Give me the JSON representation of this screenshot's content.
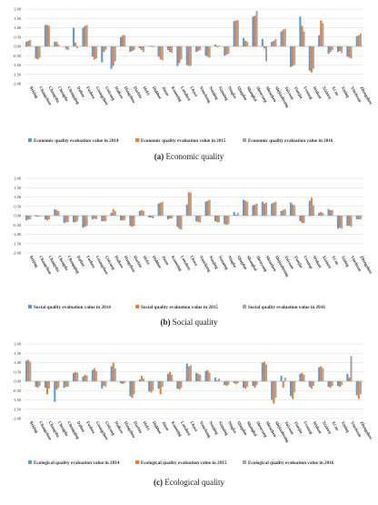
{
  "colors": {
    "y2014": "#5b9bd5",
    "y2015": "#ed7d31",
    "y2016": "#a5a5a5",
    "grid": "#d9d9d9",
    "axis": "#bfbfbf"
  },
  "chart_data": [
    {
      "type": "bar",
      "caption_letter": "(a)",
      "caption_text": "Economic quality",
      "ylim": [
        -2.0,
        2.0
      ],
      "yticks": [
        "2.00",
        "1.50",
        "1.00",
        "0.50",
        "0.00",
        "-0.50",
        "-1.00",
        "-1.50",
        "-2.00"
      ],
      "categories": [
        "Beijing",
        "Changchun",
        "Changsha",
        "Chengdu",
        "Chongqing",
        "Dalian",
        "Fuzhou",
        "Guangzhou",
        "Guiyang",
        "Haikou",
        "Hangzhou",
        "Harbin",
        "Hefei",
        "Huhhot",
        "Jinan",
        "Kunming",
        "Lanzhou",
        "Lhasa",
        "Nanchang",
        "Nanjing",
        "Nanning",
        "Ningbo",
        "Qingdao",
        "Shanghai",
        "Shenyang",
        "Shenzhen",
        "Shijiazhuang",
        "Taiyuan",
        "Tianjin",
        "Urumqi",
        "Wuhan",
        "Xiamen",
        "Xi'an",
        "Xining",
        "Yinchuan",
        "Zhengzhou"
      ],
      "series": [
        {
          "name": "Economic quality evaluation value in 2014",
          "values": [
            0.25,
            -0.65,
            1.15,
            0.25,
            0.0,
            1.0,
            1.0,
            -0.55,
            -0.85,
            -1.2,
            0.5,
            -0.3,
            -0.1,
            0.0,
            -0.55,
            -0.2,
            -1.05,
            -1.0,
            -0.3,
            -0.5,
            0.1,
            -0.5,
            1.35,
            0.45,
            1.6,
            0.4,
            0.25,
            0.8,
            -1.1,
            1.6,
            -1.3,
            0.6,
            -0.4,
            -0.3,
            -0.55,
            0.55
          ]
        },
        {
          "name": "Economic quality evaluation value in 2015",
          "values": [
            0.3,
            -0.7,
            1.15,
            0.25,
            -0.15,
            0.2,
            1.1,
            -0.7,
            -0.3,
            -1.05,
            0.6,
            -0.25,
            -0.2,
            0.05,
            -0.7,
            -0.3,
            -0.9,
            -1.05,
            -0.25,
            -0.55,
            -0.05,
            -0.45,
            1.4,
            0.3,
            1.65,
            -0.1,
            0.3,
            0.9,
            -1.05,
            1.1,
            -1.4,
            1.4,
            -0.3,
            -0.25,
            -0.6,
            0.6
          ]
        },
        {
          "name": "Economic quality evaluation value in 2016",
          "values": [
            0.35,
            -0.6,
            1.1,
            0.1,
            -0.2,
            -0.1,
            1.15,
            -0.65,
            -0.2,
            -0.8,
            0.6,
            -0.2,
            -0.3,
            -0.05,
            -0.75,
            -0.35,
            -0.7,
            -1.05,
            -0.2,
            -0.6,
            0.05,
            -0.4,
            1.4,
            0.25,
            1.9,
            -0.8,
            0.4,
            0.95,
            -1.0,
            0.8,
            -1.2,
            1.25,
            -0.2,
            -0.35,
            -0.65,
            0.7
          ]
        }
      ]
    },
    {
      "type": "bar",
      "caption_letter": "(b)",
      "caption_text": "Social quality",
      "ylim": [
        -2.0,
        2.0
      ],
      "yticks": [
        "2.00",
        "1.50",
        "1.00",
        "0.50",
        "0.00",
        "-0.50",
        "-1.00",
        "-1.50",
        "-2.00"
      ],
      "categories": [
        "Beijing",
        "Changchun",
        "Changsha",
        "Chengdu",
        "Chongqing",
        "Dalian",
        "Fuzhou",
        "Guangzhou",
        "Guiyang",
        "Haikou",
        "Hangzhou",
        "Harbin",
        "Hefei",
        "Huhhot",
        "Jinan",
        "Kunming",
        "Lanzhou",
        "Lhasa",
        "Nanchang",
        "Nanjing",
        "Nanning",
        "Ningbo",
        "Qingdao",
        "Shanghai",
        "Shenyang",
        "Shenzhen",
        "Shijiazhuang",
        "Taiyuan",
        "Tianjin",
        "Urumqi",
        "Wuhan",
        "Xiamen",
        "Xi'an",
        "Xining",
        "Yinchuan",
        "Zhengzhou"
      ],
      "series": [
        {
          "name": "Social quality evaluation value in 2014",
          "values": [
            -0.25,
            -0.05,
            -0.2,
            0.35,
            -0.4,
            -0.35,
            -0.65,
            -0.2,
            -0.3,
            0.15,
            -0.25,
            -0.55,
            0.25,
            -0.1,
            0.65,
            -0.2,
            -0.6,
            0.6,
            -0.3,
            0.75,
            -0.3,
            -0.45,
            0.2,
            0.85,
            0.55,
            0.75,
            0.65,
            0.25,
            0.7,
            -0.3,
            0.8,
            0.15,
            0.35,
            -0.7,
            -0.55,
            -0.2
          ]
        },
        {
          "name": "Social quality evaluation value in 2015",
          "values": [
            -0.2,
            -0.05,
            -0.25,
            0.3,
            -0.35,
            -0.35,
            -0.6,
            -0.15,
            -0.3,
            0.35,
            -0.25,
            -0.6,
            0.3,
            -0.1,
            0.7,
            -0.15,
            -0.7,
            1.25,
            -0.35,
            0.8,
            -0.35,
            -0.5,
            0.05,
            0.8,
            0.6,
            0.65,
            0.7,
            0.3,
            0.6,
            -0.4,
            0.95,
            0.2,
            0.3,
            -0.65,
            -0.55,
            -0.2
          ]
        },
        {
          "name": "Social quality evaluation value in 2016",
          "values": [
            -0.2,
            -0.05,
            -0.2,
            0.25,
            -0.35,
            -0.3,
            -0.55,
            -0.2,
            -0.3,
            0.25,
            -0.25,
            -0.55,
            0.25,
            -0.15,
            0.75,
            -0.15,
            -0.75,
            1.25,
            -0.35,
            0.85,
            -0.35,
            -0.45,
            0.15,
            0.75,
            0.65,
            0.7,
            0.75,
            0.35,
            0.55,
            -0.4,
            0.55,
            0.15,
            0.3,
            -0.7,
            -0.6,
            -0.2
          ]
        }
      ]
    },
    {
      "type": "bar",
      "caption_letter": "(c)",
      "caption_text": "Ecological quality",
      "ylim": [
        -2.0,
        2.0
      ],
      "yticks": [
        "2.00",
        "1.50",
        "1.00",
        "0.50",
        "0.00",
        "-0.50",
        "-1.00",
        "-1.50",
        "-2.00"
      ],
      "categories": [
        "Beijing",
        "Changchun",
        "Changsha",
        "Chengdu",
        "Chongqing",
        "Dalian",
        "Fuzhou",
        "Guangzhou",
        "Guiyang",
        "Haikou",
        "Hangzhou",
        "Harbin",
        "Hefei",
        "Huhhot",
        "Jinan",
        "Kunming",
        "Lanzhou",
        "Lhasa",
        "Nanchang",
        "Nanjing",
        "Nanning",
        "Ningbo",
        "Qingdao",
        "Shanghai",
        "Shenyang",
        "Shenzhen",
        "Shijiazhuang",
        "Taiyuan",
        "Tianjin",
        "Urumqi",
        "Wuhan",
        "Xiamen",
        "Xi'an",
        "Xining",
        "Yinchuan",
        "Zhengzhou"
      ],
      "series": [
        {
          "name": "Ecological quality evaluation value in 2014",
          "values": [
            1.1,
            -0.3,
            -0.35,
            -1.1,
            -0.35,
            0.45,
            0.25,
            0.6,
            -0.4,
            0.8,
            -0.1,
            -0.8,
            0.1,
            -0.55,
            -0.4,
            0.4,
            -0.4,
            0.95,
            0.45,
            0.55,
            0.2,
            -0.2,
            -0.1,
            -0.35,
            -0.25,
            1.0,
            -1.0,
            0.3,
            -0.8,
            0.4,
            -0.3,
            0.75,
            -0.3,
            -0.25,
            0.4,
            -0.75
          ]
        },
        {
          "name": "Ecological quality evaluation value in 2015",
          "values": [
            1.15,
            -0.35,
            -0.7,
            -0.45,
            -0.3,
            0.5,
            0.35,
            0.7,
            -0.25,
            1.0,
            -0.15,
            -0.9,
            0.3,
            -0.6,
            -0.7,
            0.5,
            -0.45,
            0.8,
            0.4,
            0.6,
            0.05,
            -0.25,
            -0.15,
            -0.4,
            -0.35,
            1.05,
            -1.2,
            -0.35,
            -0.95,
            0.45,
            -0.4,
            0.8,
            -0.35,
            -0.3,
            0.2,
            -0.95
          ]
        },
        {
          "name": "Ecological quality evaluation value in 2016",
          "values": [
            1.05,
            -0.25,
            -0.4,
            -0.35,
            -0.3,
            0.45,
            0.3,
            0.55,
            -0.3,
            0.7,
            -0.1,
            -0.7,
            0.15,
            -0.5,
            -0.3,
            0.35,
            -0.35,
            0.85,
            0.35,
            0.45,
            0.15,
            -0.2,
            -0.1,
            -0.3,
            -0.2,
            0.9,
            -0.9,
            0.2,
            -0.6,
            0.35,
            -0.25,
            0.7,
            -0.25,
            -0.2,
            1.35,
            -0.7
          ]
        }
      ]
    }
  ]
}
